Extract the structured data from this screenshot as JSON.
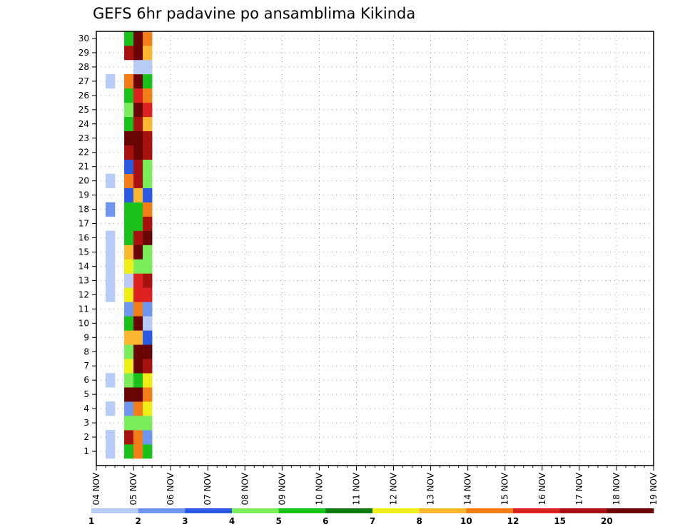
{
  "chart_data": {
    "type": "heatmap",
    "title": "GEFS 6hr padavine po ansamblima Kikinda",
    "xlabel": "",
    "ylabel": "",
    "x_tick_labels": [
      "04 NOV",
      "05 NOV",
      "06 NOV",
      "07 NOV",
      "08 NOV",
      "09 NOV",
      "10 NOV",
      "11 NOV",
      "12 NOV",
      "13 NOV",
      "14 NOV",
      "15 NOV",
      "16 NOV",
      "17 NOV",
      "18 NOV",
      "19 NOV"
    ],
    "x_steps_per_day": 4,
    "x_range_steps": [
      0,
      60
    ],
    "y_tick_labels": [
      "1",
      "2",
      "3",
      "4",
      "5",
      "6",
      "7",
      "8",
      "9",
      "10",
      "11",
      "12",
      "13",
      "14",
      "15",
      "16",
      "17",
      "18",
      "19",
      "20",
      "21",
      "22",
      "23",
      "24",
      "25",
      "26",
      "27",
      "28",
      "29",
      "30"
    ],
    "grid": true,
    "legend": "bottom",
    "colorbar": {
      "tick_labels": [
        "1",
        "2",
        "3",
        "4",
        "5",
        "6",
        "7",
        "8",
        "10",
        "12",
        "15",
        "20"
      ],
      "colors": [
        "#b8ccf5",
        "#6f96ef",
        "#2a5ae0",
        "#7aee5a",
        "#19c119",
        "#0c7a0c",
        "#f0ee19",
        "#fbb72f",
        "#f37d17",
        "#dd2121",
        "#a7110f",
        "#6a0505"
      ]
    },
    "cells": [
      [
        1,
        1,
        0
      ],
      [
        2,
        1,
        0
      ],
      [
        3,
        10,
        0
      ],
      [
        3,
        10,
        0
      ],
      [
        4,
        1,
        0
      ],
      [
        6,
        1,
        0
      ],
      [
        14,
        1,
        0
      ],
      [
        15,
        1,
        0
      ],
      [
        16,
        1,
        0
      ],
      [
        17,
        1,
        0
      ],
      [
        18,
        3,
        0
      ],
      [
        20,
        1,
        0
      ],
      [
        27,
        1,
        0
      ],
      [
        29,
        1,
        0
      ],
      [
        30,
        1,
        0
      ],
      [
        2,
        2,
        0
      ],
      [
        3,
        11,
        0
      ],
      [
        4,
        3,
        0
      ],
      [
        5,
        2,
        0
      ],
      [
        6,
        1,
        0
      ],
      [
        7,
        1,
        0
      ],
      [
        8,
        1,
        0
      ],
      [
        9,
        1,
        0
      ],
      [
        10,
        1,
        0
      ],
      [
        11,
        1,
        0
      ],
      [
        12,
        1,
        0
      ],
      [
        13,
        1,
        0
      ],
      [
        14,
        1,
        0
      ],
      [
        15,
        1,
        0
      ],
      [
        16,
        1,
        0
      ],
      [
        19,
        2,
        0
      ],
      [
        20,
        1,
        0
      ],
      [
        24,
        1,
        0
      ],
      [
        26,
        1,
        0
      ],
      [
        27,
        1,
        0
      ],
      [
        28,
        10,
        0
      ],
      [
        30,
        1,
        0
      ]
    ],
    "cell_values": [
      {
        "m": 1,
        "t": 1,
        "v": 1
      },
      {
        "m": 2,
        "t": 1,
        "v": 1
      },
      {
        "m": 4,
        "t": 1,
        "v": 1
      },
      {
        "m": 6,
        "t": 1,
        "v": 1
      },
      {
        "m": 12,
        "t": 1,
        "v": 1
      },
      {
        "m": 13,
        "t": 1,
        "v": 1
      },
      {
        "m": 14,
        "t": 1,
        "v": 1
      },
      {
        "m": 15,
        "t": 1,
        "v": 1
      },
      {
        "m": 16,
        "t": 1,
        "v": 1
      },
      {
        "m": 18,
        "t": 1,
        "v": 2
      },
      {
        "m": 20,
        "t": 1,
        "v": 1
      },
      {
        "m": 27,
        "t": 1,
        "v": 1
      },
      {
        "m": 1,
        "t": 3,
        "v": 5
      },
      {
        "m": 2,
        "t": 3,
        "v": 15
      },
      {
        "m": 3,
        "t": 3,
        "v": 4
      },
      {
        "m": 4,
        "t": 3,
        "v": 2
      },
      {
        "m": 5,
        "t": 3,
        "v": 20
      },
      {
        "m": 6,
        "t": 3,
        "v": 4
      },
      {
        "m": 7,
        "t": 3,
        "v": 7
      },
      {
        "m": 8,
        "t": 3,
        "v": 4
      },
      {
        "m": 9,
        "t": 3,
        "v": 8
      },
      {
        "m": 10,
        "t": 3,
        "v": 5
      },
      {
        "m": 11,
        "t": 3,
        "v": 2
      },
      {
        "m": 12,
        "t": 3,
        "v": 7
      },
      {
        "m": 13,
        "t": 3,
        "v": 1
      },
      {
        "m": 14,
        "t": 3,
        "v": 7
      },
      {
        "m": 15,
        "t": 3,
        "v": 8
      },
      {
        "m": 16,
        "t": 3,
        "v": 5
      },
      {
        "m": 17,
        "t": 3,
        "v": 5
      },
      {
        "m": 18,
        "t": 3,
        "v": 5
      },
      {
        "m": 19,
        "t": 3,
        "v": 3
      },
      {
        "m": 20,
        "t": 3,
        "v": 10
      },
      {
        "m": 21,
        "t": 3,
        "v": 3
      },
      {
        "m": 22,
        "t": 3,
        "v": 15
      },
      {
        "m": 23,
        "t": 3,
        "v": 20
      },
      {
        "m": 24,
        "t": 3,
        "v": 5
      },
      {
        "m": 25,
        "t": 3,
        "v": 4
      },
      {
        "m": 26,
        "t": 3,
        "v": 5
      },
      {
        "m": 27,
        "t": 3,
        "v": 10
      },
      {
        "m": 29,
        "t": 3,
        "v": 15
      },
      {
        "m": 30,
        "t": 3,
        "v": 5
      },
      {
        "m": 1,
        "t": 4,
        "v": 10
      },
      {
        "m": 2,
        "t": 4,
        "v": 10
      },
      {
        "m": 3,
        "t": 4,
        "v": 4
      },
      {
        "m": 4,
        "t": 4,
        "v": 10
      },
      {
        "m": 5,
        "t": 4,
        "v": 20
      },
      {
        "m": 6,
        "t": 4,
        "v": 5
      },
      {
        "m": 7,
        "t": 4,
        "v": 20
      },
      {
        "m": 8,
        "t": 4,
        "v": 20
      },
      {
        "m": 9,
        "t": 4,
        "v": 8
      },
      {
        "m": 10,
        "t": 4,
        "v": 20
      },
      {
        "m": 11,
        "t": 4,
        "v": 10
      },
      {
        "m": 12,
        "t": 4,
        "v": 12
      },
      {
        "m": 13,
        "t": 4,
        "v": 12
      },
      {
        "m": 14,
        "t": 4,
        "v": 4
      },
      {
        "m": 15,
        "t": 4,
        "v": 20
      },
      {
        "m": 16,
        "t": 4,
        "v": 15
      },
      {
        "m": 17,
        "t": 4,
        "v": 5
      },
      {
        "m": 18,
        "t": 4,
        "v": 5
      },
      {
        "m": 19,
        "t": 4,
        "v": 8
      },
      {
        "m": 20,
        "t": 4,
        "v": 15
      },
      {
        "m": 21,
        "t": 4,
        "v": 15
      },
      {
        "m": 22,
        "t": 4,
        "v": 20
      },
      {
        "m": 23,
        "t": 4,
        "v": 20
      },
      {
        "m": 24,
        "t": 4,
        "v": 15
      },
      {
        "m": 25,
        "t": 4,
        "v": 20
      },
      {
        "m": 26,
        "t": 4,
        "v": 12
      },
      {
        "m": 27,
        "t": 4,
        "v": 20
      },
      {
        "m": 28,
        "t": 4,
        "v": 1
      },
      {
        "m": 29,
        "t": 4,
        "v": 20
      },
      {
        "m": 30,
        "t": 4,
        "v": 20
      },
      {
        "m": 1,
        "t": 5,
        "v": 5
      },
      {
        "m": 2,
        "t": 5,
        "v": 2
      },
      {
        "m": 3,
        "t": 5,
        "v": 4
      },
      {
        "m": 4,
        "t": 5,
        "v": 7
      },
      {
        "m": 5,
        "t": 5,
        "v": 10
      },
      {
        "m": 6,
        "t": 5,
        "v": 7
      },
      {
        "m": 7,
        "t": 5,
        "v": 15
      },
      {
        "m": 8,
        "t": 5,
        "v": 20
      },
      {
        "m": 9,
        "t": 5,
        "v": 3
      },
      {
        "m": 10,
        "t": 5,
        "v": 1
      },
      {
        "m": 11,
        "t": 5,
        "v": 2
      },
      {
        "m": 12,
        "t": 5,
        "v": 12
      },
      {
        "m": 13,
        "t": 5,
        "v": 15
      },
      {
        "m": 14,
        "t": 5,
        "v": 4
      },
      {
        "m": 15,
        "t": 5,
        "v": 4
      },
      {
        "m": 16,
        "t": 5,
        "v": 20
      },
      {
        "m": 17,
        "t": 5,
        "v": 15
      },
      {
        "m": 18,
        "t": 5,
        "v": 10
      },
      {
        "m": 19,
        "t": 5,
        "v": 3
      },
      {
        "m": 20,
        "t": 5,
        "v": 4
      },
      {
        "m": 21,
        "t": 5,
        "v": 4
      },
      {
        "m": 22,
        "t": 5,
        "v": 15
      },
      {
        "m": 23,
        "t": 5,
        "v": 15
      },
      {
        "m": 24,
        "t": 5,
        "v": 8
      },
      {
        "m": 25,
        "t": 5,
        "v": 12
      },
      {
        "m": 26,
        "t": 5,
        "v": 10
      },
      {
        "m": 27,
        "t": 5,
        "v": 5
      },
      {
        "m": 28,
        "t": 5,
        "v": 1
      },
      {
        "m": 29,
        "t": 5,
        "v": 8
      },
      {
        "m": 30,
        "t": 5,
        "v": 10
      }
    ],
    "note_cells": ""
  }
}
